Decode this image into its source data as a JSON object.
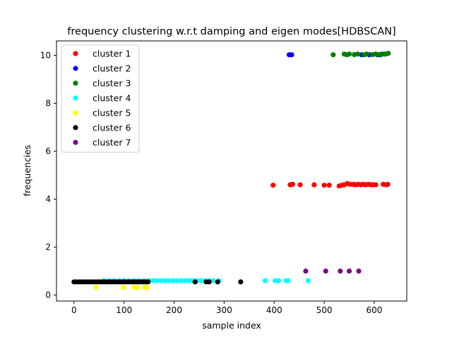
{
  "chart_data": {
    "type": "scatter",
    "title": "frequency clustering w.r.t damping and eigen modes[HDBSCAN]",
    "xlabel": "sample index",
    "ylabel": "frequencies",
    "xlim": [
      -35,
      665
    ],
    "ylim": [
      -0.25,
      10.6
    ],
    "xticks": [
      0,
      100,
      200,
      300,
      400,
      500,
      600
    ],
    "yticks": [
      0,
      2,
      4,
      6,
      8,
      10
    ],
    "grid": false,
    "legend_position": "top-left",
    "series": [
      {
        "name": "cluster 1",
        "color": "#ff0000",
        "points": [
          [
            398,
            4.58
          ],
          [
            432,
            4.6
          ],
          [
            437,
            4.62
          ],
          [
            452,
            4.6
          ],
          [
            480,
            4.6
          ],
          [
            500,
            4.58
          ],
          [
            510,
            4.58
          ],
          [
            530,
            4.55
          ],
          [
            535,
            4.58
          ],
          [
            540,
            4.6
          ],
          [
            546,
            4.65
          ],
          [
            552,
            4.62
          ],
          [
            558,
            4.62
          ],
          [
            563,
            4.6
          ],
          [
            568,
            4.62
          ],
          [
            573,
            4.6
          ],
          [
            578,
            4.62
          ],
          [
            583,
            4.6
          ],
          [
            588,
            4.62
          ],
          [
            593,
            4.6
          ],
          [
            598,
            4.6
          ],
          [
            603,
            4.6
          ],
          [
            618,
            4.62
          ],
          [
            624,
            4.6
          ],
          [
            627,
            4.62
          ]
        ]
      },
      {
        "name": "cluster 2",
        "color": "#0000ff",
        "points": [
          [
            430,
            10.02
          ],
          [
            435,
            10.02
          ],
          [
            575,
            10.02
          ],
          [
            590,
            10.02
          ],
          [
            607,
            10.02
          ],
          [
            612,
            10.02
          ]
        ]
      },
      {
        "name": "cluster 3",
        "color": "#008000",
        "points": [
          [
            518,
            10.02
          ],
          [
            540,
            10.05
          ],
          [
            545,
            10.02
          ],
          [
            550,
            10.05
          ],
          [
            560,
            10.03
          ],
          [
            567,
            10.05
          ],
          [
            580,
            10.02
          ],
          [
            585,
            10.05
          ],
          [
            597,
            10.03
          ],
          [
            603,
            10.05
          ],
          [
            610,
            10.03
          ],
          [
            615,
            10.05
          ],
          [
            620,
            10.05
          ],
          [
            623,
            10.05
          ],
          [
            628,
            10.08
          ]
        ]
      },
      {
        "name": "cluster 4",
        "color": "#00ffff",
        "points": [
          [
            60,
            0.6
          ],
          [
            70,
            0.6
          ],
          [
            80,
            0.6
          ],
          [
            90,
            0.6
          ],
          [
            100,
            0.6
          ],
          [
            110,
            0.6
          ],
          [
            120,
            0.6
          ],
          [
            130,
            0.6
          ],
          [
            140,
            0.6
          ],
          [
            150,
            0.6
          ],
          [
            158,
            0.6
          ],
          [
            166,
            0.6
          ],
          [
            174,
            0.6
          ],
          [
            182,
            0.6
          ],
          [
            190,
            0.6
          ],
          [
            198,
            0.6
          ],
          [
            206,
            0.6
          ],
          [
            214,
            0.6
          ],
          [
            222,
            0.6
          ],
          [
            230,
            0.6
          ],
          [
            238,
            0.6
          ],
          [
            246,
            0.6
          ],
          [
            254,
            0.6
          ],
          [
            262,
            0.6
          ],
          [
            270,
            0.6
          ],
          [
            278,
            0.6
          ],
          [
            290,
            0.6
          ],
          [
            382,
            0.6
          ],
          [
            402,
            0.6
          ],
          [
            409,
            0.6
          ],
          [
            424,
            0.6
          ],
          [
            428,
            0.6
          ],
          [
            468,
            0.6
          ]
        ]
      },
      {
        "name": "cluster 5",
        "color": "#ffff00",
        "points": [
          [
            44,
            0.32
          ],
          [
            99,
            0.32
          ],
          [
            120,
            0.32
          ],
          [
            126,
            0.32
          ],
          [
            141,
            0.32
          ],
          [
            146,
            0.32
          ]
        ]
      },
      {
        "name": "cluster 6",
        "color": "#000000",
        "points": [
          [
            0,
            0.55
          ],
          [
            5,
            0.55
          ],
          [
            10,
            0.55
          ],
          [
            15,
            0.55
          ],
          [
            20,
            0.55
          ],
          [
            25,
            0.55
          ],
          [
            30,
            0.55
          ],
          [
            35,
            0.55
          ],
          [
            40,
            0.55
          ],
          [
            45,
            0.55
          ],
          [
            50,
            0.55
          ],
          [
            55,
            0.55
          ],
          [
            60,
            0.55
          ],
          [
            65,
            0.55
          ],
          [
            70,
            0.55
          ],
          [
            75,
            0.55
          ],
          [
            80,
            0.55
          ],
          [
            85,
            0.55
          ],
          [
            90,
            0.55
          ],
          [
            95,
            0.55
          ],
          [
            100,
            0.55
          ],
          [
            105,
            0.55
          ],
          [
            110,
            0.55
          ],
          [
            115,
            0.55
          ],
          [
            120,
            0.55
          ],
          [
            125,
            0.55
          ],
          [
            130,
            0.55
          ],
          [
            135,
            0.55
          ],
          [
            140,
            0.55
          ],
          [
            145,
            0.55
          ],
          [
            148,
            0.55
          ],
          [
            242,
            0.55
          ],
          [
            264,
            0.55
          ],
          [
            270,
            0.55
          ],
          [
            287,
            0.55
          ],
          [
            333,
            0.55
          ]
        ]
      },
      {
        "name": "cluster 7",
        "color": "#800080",
        "points": [
          [
            463,
            1.0
          ],
          [
            503,
            1.0
          ],
          [
            532,
            1.0
          ],
          [
            550,
            1.0
          ],
          [
            569,
            1.0
          ]
        ]
      }
    ]
  }
}
